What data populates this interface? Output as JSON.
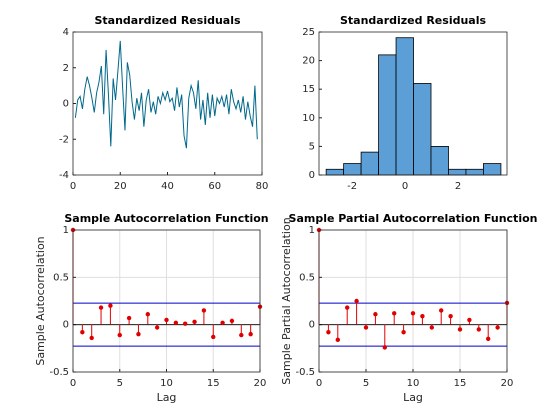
{
  "chart_data": [
    {
      "type": "line",
      "title": "Standardized Residuals",
      "color": "#00688b",
      "x": [
        1,
        2,
        3,
        4,
        5,
        6,
        7,
        8,
        9,
        10,
        11,
        12,
        13,
        14,
        15,
        16,
        17,
        18,
        19,
        20,
        21,
        22,
        23,
        24,
        25,
        26,
        27,
        28,
        29,
        30,
        31,
        32,
        33,
        34,
        35,
        36,
        37,
        38,
        39,
        40,
        41,
        42,
        43,
        44,
        45,
        46,
        47,
        48,
        49,
        50,
        51,
        52,
        53,
        54,
        55,
        56,
        57,
        58,
        59,
        60,
        61,
        62,
        63,
        64,
        65,
        66,
        67,
        68,
        69,
        70,
        71,
        72,
        73,
        74,
        75,
        76,
        77,
        78
      ],
      "values": [
        -0.8,
        0.2,
        0.4,
        -0.3,
        0.8,
        1.5,
        1.0,
        0.3,
        -0.5,
        0.6,
        1.2,
        2.1,
        -0.6,
        3.0,
        0.5,
        -2.4,
        1.4,
        0.2,
        1.8,
        3.5,
        0.9,
        -1.5,
        2.3,
        1.6,
        0.1,
        -0.9,
        0.3,
        -0.4,
        0.6,
        -1.3,
        0.2,
        0.8,
        -0.5,
        0.1,
        -0.6,
        0.4,
        0.0,
        0.6,
        0.2,
        0.7,
        0.1,
        0.3,
        -0.4,
        0.9,
        -0.2,
        0.5,
        -1.8,
        -2.5,
        0.3,
        1.0,
        0.6,
        -0.3,
        1.3,
        -0.9,
        0.2,
        -1.2,
        0.6,
        -0.8,
        0.5,
        -0.7,
        0.3,
        0.0,
        0.4,
        -0.2,
        0.5,
        -0.6,
        0.8,
        0.1,
        -0.3,
        0.2,
        -0.5,
        0.4,
        -0.9,
        0.1,
        -0.7,
        -1.3,
        1.0,
        -2.0
      ],
      "xlim": [
        0,
        80
      ],
      "xticks": [
        0,
        20,
        40,
        60,
        80
      ],
      "ylim": [
        -4,
        4
      ],
      "yticks": [
        -4,
        -2,
        0,
        2,
        4
      ],
      "grid": false
    },
    {
      "type": "histogram",
      "title": "Standardized Residuals",
      "color": "#5b9fd6",
      "bins": [
        -2.98,
        -2.32,
        -1.66,
        -1.0,
        -0.34,
        0.32,
        0.98,
        1.64,
        2.3,
        2.96,
        3.62
      ],
      "values": [
        1,
        2,
        4,
        21,
        24,
        16,
        5,
        1,
        1,
        2
      ],
      "xlim": [
        -3.25,
        3.85
      ],
      "xticks": [
        -2,
        0,
        2
      ],
      "ylim": [
        0,
        25
      ],
      "yticks": [
        0,
        5,
        10,
        15,
        20,
        25
      ],
      "grid": false
    },
    {
      "type": "stem",
      "title": "Sample Autocorrelation Function",
      "xlabel": "Lag",
      "ylabel": "Sample Autocorrelation",
      "color": "#e00000",
      "x": [
        0,
        1,
        2,
        3,
        4,
        5,
        6,
        7,
        8,
        9,
        10,
        11,
        12,
        13,
        14,
        15,
        16,
        17,
        18,
        19,
        20
      ],
      "values": [
        1,
        -0.08,
        -0.14,
        0.18,
        0.2,
        -0.11,
        0.07,
        -0.1,
        0.11,
        -0.03,
        0.05,
        0.02,
        0.01,
        0.03,
        0.15,
        -0.13,
        0.02,
        0.04,
        -0.11,
        -0.1,
        0.19
      ],
      "bounds": [
        0.227,
        -0.227
      ],
      "bounds_color": "#0000cc",
      "xlim": [
        0,
        20
      ],
      "xticks": [
        0,
        5,
        10,
        15,
        20
      ],
      "ylim": [
        -0.5,
        1
      ],
      "yticks": [
        -0.5,
        0,
        0.5,
        1
      ],
      "grid": true
    },
    {
      "type": "stem",
      "title": "Sample Partial Autocorrelation Function",
      "xlabel": "Lag",
      "ylabel": "Sample Partial Autocorrelation",
      "color": "#e00000",
      "x": [
        0,
        1,
        2,
        3,
        4,
        5,
        6,
        7,
        8,
        9,
        10,
        11,
        12,
        13,
        14,
        15,
        16,
        17,
        18,
        19,
        20
      ],
      "values": [
        1,
        -0.08,
        -0.16,
        0.18,
        0.25,
        -0.03,
        0.11,
        -0.24,
        0.12,
        -0.08,
        0.12,
        0.09,
        -0.03,
        0.15,
        0.09,
        -0.05,
        0.05,
        -0.05,
        -0.15,
        -0.03,
        0.23
      ],
      "bounds": [
        0.227,
        -0.227
      ],
      "bounds_color": "#0000cc",
      "xlim": [
        0,
        20
      ],
      "xticks": [
        0,
        5,
        10,
        15,
        20
      ],
      "ylim": [
        -0.5,
        1
      ],
      "yticks": [
        -0.5,
        0,
        0.5,
        1
      ],
      "grid": true
    }
  ]
}
